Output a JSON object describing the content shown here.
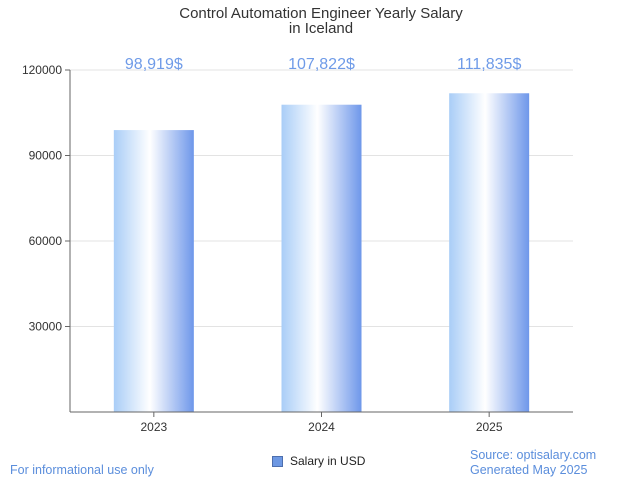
{
  "chart_data": {
    "type": "bar",
    "title": [
      "Control Automation Engineer Yearly Salary",
      "in Iceland"
    ],
    "categories": [
      "2023",
      "2024",
      "2025"
    ],
    "series": [
      {
        "name": "Salary in USD",
        "values": [
          98919,
          107822,
          111835
        ]
      }
    ],
    "data_labels": [
      "98,919$",
      "107,822$",
      "111,835$"
    ],
    "yticks": [
      30000,
      60000,
      90000,
      120000
    ],
    "ytick_labels": [
      "30000",
      "60000",
      "90000",
      "120000"
    ],
    "ylim": [
      0,
      120000
    ],
    "grid": true,
    "legend_position": "bottom"
  },
  "colors": {
    "bar_light": "#ffffff",
    "bar_mid": "#a9cdf7",
    "bar_dark": "#6e97ea",
    "label": "#6f9be8"
  },
  "footer": {
    "left": "For informational use only",
    "source": "Source: optisalary.com",
    "generated": "Generated May 2025"
  }
}
